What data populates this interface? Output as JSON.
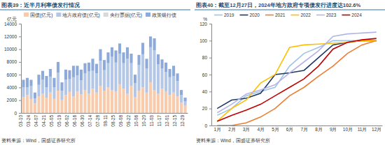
{
  "chart_data": [
    {
      "type": "bar",
      "title": "图表39：近半月利率债发行情况",
      "y_label": "亿元",
      "annotations": [
        "资料来源：Wind，国盛证券研究所"
      ],
      "categories": [
        "03-10",
        null,
        "03-24",
        null,
        "04-07",
        null,
        "04-21",
        null,
        "05-05",
        null,
        "05-19",
        null,
        "06-02",
        null,
        "06-16",
        null,
        "06-30",
        null,
        "07-14",
        null,
        "07-28",
        null,
        "08-11",
        null,
        "08-25",
        null,
        "09-08",
        null,
        "09-22",
        null,
        "10-06",
        null,
        "10-20",
        null,
        "11-03",
        null,
        "11-17",
        null,
        "12-01",
        null,
        "12-15",
        null,
        "12-29"
      ],
      "series": [
        {
          "name": "国债(亿元)",
          "color": "#f8cbad",
          "values": [
            2500,
            2800,
            2200,
            1500,
            2600,
            3000,
            2400,
            3200,
            2200,
            3500,
            2000,
            2800,
            3300,
            2600,
            3400,
            2900,
            3600,
            3000,
            3800,
            3200,
            4200,
            3500,
            4000,
            3600,
            3400,
            4500,
            3800,
            3000,
            4200,
            2500,
            3500,
            4000,
            3200,
            4800,
            3600,
            3000,
            3800,
            3400,
            2800,
            3200,
            2600,
            1600,
            1200
          ]
        },
        {
          "name": "地方政府债(亿元)",
          "color": "#b4c7e7",
          "values": [
            1500,
            1200,
            2000,
            800,
            1800,
            2200,
            1600,
            2500,
            1800,
            2800,
            1500,
            2400,
            2000,
            3000,
            2500,
            2200,
            2600,
            3500,
            2800,
            3000,
            4000,
            3200,
            3800,
            5200,
            4500,
            4800,
            4000,
            5500,
            3600,
            2200,
            4000,
            5200,
            3800,
            5500,
            6200,
            4600,
            3200,
            3000,
            2800,
            2600,
            2400,
            1200,
            600
          ]
        },
        {
          "name": "央行票据(亿元)",
          "color": "#d9d9d9",
          "values": [
            0,
            0,
            0,
            0,
            0,
            0,
            0,
            0,
            0,
            0,
            0,
            0,
            0,
            0,
            0,
            0,
            0,
            0,
            0,
            0,
            0,
            0,
            0,
            0,
            0,
            0,
            0,
            0,
            0,
            0,
            0,
            0,
            0,
            0,
            0,
            0,
            0,
            0,
            0,
            0,
            0,
            0,
            0
          ]
        },
        {
          "name": "政策银行债",
          "color": "#8eaadb",
          "values": [
            1200,
            1500,
            1000,
            900,
            1600,
            1400,
            1800,
            1200,
            1500,
            1700,
            1300,
            1600,
            1400,
            1800,
            1500,
            1700,
            1600,
            1400,
            1900,
            1500,
            1800,
            1600,
            1700,
            1500,
            1900,
            1600,
            1700,
            1800,
            1500,
            1300,
            1600,
            1800,
            1500,
            1700,
            1900,
            1600,
            1400,
            1500,
            1300,
            1600,
            1200,
            800,
            600
          ]
        }
      ],
      "ylim": [
        0,
        14000
      ],
      "yticks": [
        0,
        2000,
        4000,
        6000,
        8000,
        10000,
        12000,
        14000
      ],
      "stacked": true,
      "legend": "top",
      "grid": false
    },
    {
      "type": "line",
      "title": "图表40：截至12月27日，2024年地方政府专项债发行进度达102.6%",
      "y_label": "%",
      "annotations": [
        "资料来源：Wind，国盛证券研究所"
      ],
      "categories": [
        "1月",
        "2月",
        "3月",
        "4月",
        "5月",
        "6月",
        "7月",
        "8月",
        "9月",
        "10月",
        "11月",
        "12月"
      ],
      "series": [
        {
          "name": "2019",
          "color": "#9dc3e6",
          "values": [
            12,
            20,
            35,
            40,
            45,
            70,
            85,
            92,
            100,
            100,
            100,
            100
          ]
        },
        {
          "name": "2020",
          "color": "#1f3864",
          "values": [
            20,
            30,
            32,
            38,
            60,
            62,
            65,
            80,
            95,
            98,
            100,
            100
          ]
        },
        {
          "name": "2021",
          "color": "#ed7d31",
          "values": [
            0,
            0,
            3,
            10,
            20,
            35,
            45,
            58,
            70,
            85,
            95,
            100
          ]
        },
        {
          "name": "2022",
          "color": "#ffc000",
          "values": [
            5,
            20,
            30,
            50,
            60,
            92,
            95,
            96,
            97,
            98,
            100,
            100
          ]
        },
        {
          "name": "2023",
          "color": "#b4b4e6",
          "values": [
            15,
            25,
            37,
            42,
            48,
            62,
            75,
            88,
            105,
            108,
            109,
            110
          ]
        },
        {
          "name": "2024",
          "color": "#c00000",
          "values": [
            5,
            12,
            18,
            25,
            35,
            45,
            55,
            70,
            90,
            98,
            101,
            102.6
          ]
        }
      ],
      "ylim": [
        0,
        120
      ],
      "yticks": [
        0,
        20,
        40,
        60,
        80,
        100,
        120
      ],
      "legend": "top",
      "grid": false
    }
  ]
}
